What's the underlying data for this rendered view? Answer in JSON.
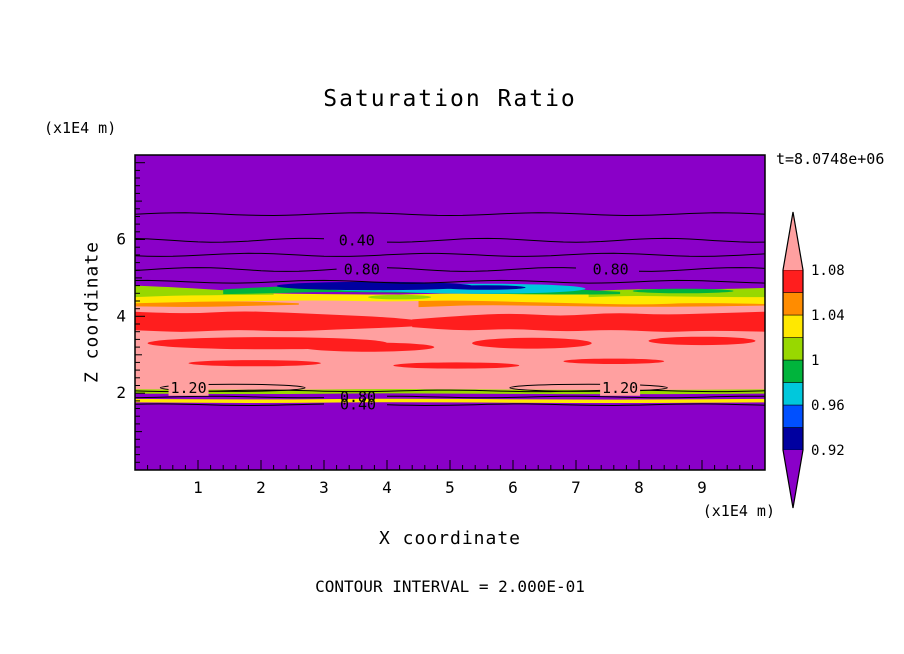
{
  "page": {
    "background_color": "#ffffff",
    "text_color": "#000000"
  },
  "chart_data": {
    "type": "heatmap",
    "subtype": "filled-contour-plot",
    "title": "Saturation Ratio",
    "time_label": "t=8.0748e+06",
    "xlabel": "X coordinate",
    "ylabel": "Z coordinate",
    "x_units_label": "(x1E4 m)",
    "y_units_label": "(x1E4 m)",
    "contour_interval_label": "CONTOUR INTERVAL = 2.000E-01",
    "contour_interval": 0.2,
    "xlim": [
      0,
      10
    ],
    "ylim": [
      0,
      8.2
    ],
    "x_ticks": [
      "1",
      "2",
      "3",
      "4",
      "5",
      "6",
      "7",
      "8",
      "9"
    ],
    "y_ticks": [
      "2",
      "4",
      "6"
    ],
    "minor_tick_step": 0.2,
    "colorbar": {
      "tick_values": [
        0.92,
        0.96,
        1,
        1.04,
        1.08
      ],
      "tick_labels": [
        "0.92",
        "0.96",
        "1",
        "1.04",
        "1.08"
      ],
      "segment_colors_bottom_to_top": [
        "#0000A0",
        "#0050FF",
        "#00C8DC",
        "#00B43C",
        "#98D800",
        "#FFE800",
        "#FF8C00",
        "#FF1E1E"
      ],
      "underflow_color": "#8A00C8",
      "overflow_color": "#FFA0A0"
    },
    "field_shapes": [
      {
        "type": "band",
        "color": "#FFA0A0",
        "x": [
          0,
          1,
          2,
          3,
          4,
          5,
          6,
          7,
          8,
          9,
          10
        ],
        "top": [
          4.5,
          4.52,
          4.5,
          4.54,
          4.5,
          4.48,
          4.46,
          4.48,
          4.5,
          4.52,
          4.5
        ],
        "bot": [
          2.04,
          2.06,
          2.03,
          2.06,
          2.04,
          2.07,
          2.05,
          2.03,
          2.06,
          2.04,
          2.05
        ]
      },
      {
        "type": "band",
        "color": "#FF8C00",
        "x": [
          0,
          1,
          2,
          2.6
        ],
        "top": [
          4.44,
          4.4,
          4.38,
          4.34
        ],
        "bot": [
          4.26,
          4.24,
          4.28,
          4.3
        ]
      },
      {
        "type": "band",
        "color": "#FF8C00",
        "x": [
          4.5,
          5.5,
          7,
          8.5,
          10
        ],
        "top": [
          4.4,
          4.44,
          4.4,
          4.38,
          4.42
        ],
        "bot": [
          4.24,
          4.3,
          4.26,
          4.24,
          4.28
        ]
      },
      {
        "type": "band",
        "color": "#FF1E1E",
        "x": [
          0,
          0.8,
          1.6,
          2.4,
          3.2,
          4,
          4.6
        ],
        "top": [
          4.12,
          4.06,
          4.14,
          4.1,
          4.04,
          3.98,
          3.88
        ],
        "bot": [
          3.64,
          3.58,
          3.66,
          3.6,
          3.66,
          3.7,
          3.76
        ]
      },
      {
        "type": "band",
        "color": "#FF1E1E",
        "x": [
          4.4,
          5.2,
          6,
          6.8,
          7.6,
          8.4,
          9.2,
          10
        ],
        "top": [
          3.92,
          4.02,
          4.08,
          4.0,
          4.1,
          4.04,
          4.08,
          4.12
        ],
        "bot": [
          3.72,
          3.62,
          3.68,
          3.6,
          3.66,
          3.58,
          3.64,
          3.6
        ]
      },
      {
        "type": "lens",
        "color": "#FF1E1E",
        "cx": 2.1,
        "cz": 3.3,
        "rx": 1.9,
        "rz": 0.16
      },
      {
        "type": "lens",
        "color": "#FF1E1E",
        "cx": 3.7,
        "cz": 3.2,
        "rx": 1.05,
        "rz": 0.12
      },
      {
        "type": "lens",
        "color": "#FF1E1E",
        "cx": 6.3,
        "cz": 3.3,
        "rx": 0.95,
        "rz": 0.14
      },
      {
        "type": "lens",
        "color": "#FF1E1E",
        "cx": 9.0,
        "cz": 3.36,
        "rx": 0.85,
        "rz": 0.11
      },
      {
        "type": "lens",
        "color": "#FF1E1E",
        "cx": 1.9,
        "cz": 2.78,
        "rx": 1.05,
        "rz": 0.08
      },
      {
        "type": "lens",
        "color": "#FF1E1E",
        "cx": 5.1,
        "cz": 2.72,
        "rx": 1.0,
        "rz": 0.08
      },
      {
        "type": "lens",
        "color": "#FF1E1E",
        "cx": 7.6,
        "cz": 2.83,
        "rx": 0.8,
        "rz": 0.07
      },
      {
        "type": "band",
        "color": "#FFE800",
        "x": [
          0,
          1,
          2,
          3,
          4,
          5,
          6,
          7,
          8,
          9,
          10
        ],
        "top": [
          4.72,
          4.66,
          4.6,
          4.58,
          4.56,
          4.6,
          4.58,
          4.62,
          4.68,
          4.66,
          4.72
        ],
        "bot": [
          4.34,
          4.38,
          4.4,
          4.42,
          4.38,
          4.42,
          4.38,
          4.34,
          4.3,
          4.36,
          4.32
        ]
      },
      {
        "type": "band",
        "color": "#98D800",
        "x": [
          0,
          0.6,
          1.2,
          1.8,
          2.2
        ],
        "top": [
          4.8,
          4.76,
          4.7,
          4.64,
          4.6
        ],
        "bot": [
          4.5,
          4.54,
          4.55,
          4.56,
          4.56
        ]
      },
      {
        "type": "band",
        "color": "#98D800",
        "x": [
          7.2,
          8,
          9,
          10
        ],
        "top": [
          4.66,
          4.72,
          4.7,
          4.74
        ],
        "bot": [
          4.5,
          4.54,
          4.5,
          4.5
        ]
      },
      {
        "type": "lens",
        "color": "#98D800",
        "cx": 4.2,
        "cz": 4.5,
        "rx": 0.5,
        "rz": 0.06
      },
      {
        "type": "band",
        "color": "#00B43C",
        "x": [
          1.4,
          2.2,
          3,
          4,
          5,
          6,
          7,
          7.7
        ],
        "top": [
          4.7,
          4.78,
          4.8,
          4.82,
          4.8,
          4.76,
          4.7,
          4.64
        ],
        "bot": [
          4.58,
          4.6,
          4.64,
          4.62,
          4.6,
          4.58,
          4.56,
          4.58
        ]
      },
      {
        "type": "lens",
        "color": "#00B43C",
        "cx": 8.7,
        "cz": 4.66,
        "rx": 0.8,
        "rz": 0.06
      },
      {
        "type": "lens",
        "color": "#00C8DC",
        "cx": 5.5,
        "cz": 4.72,
        "rx": 1.65,
        "rz": 0.13
      },
      {
        "type": "lens",
        "color": "#00C8DC",
        "cx": 4.1,
        "cz": 4.74,
        "rx": 1.1,
        "rz": 0.1
      },
      {
        "type": "lens",
        "color": "#0000A0",
        "cx": 3.8,
        "cz": 4.79,
        "rx": 1.55,
        "rz": 0.11
      },
      {
        "type": "lens",
        "color": "#0000A0",
        "cx": 5.55,
        "cz": 4.75,
        "rx": 0.65,
        "rz": 0.06
      },
      {
        "type": "band",
        "color": "#98D800",
        "x": [
          0,
          2,
          4,
          6,
          8,
          10
        ],
        "top": [
          2.1,
          2.08,
          2.11,
          2.09,
          2.08,
          2.1
        ],
        "bot": [
          1.99,
          1.97,
          2.0,
          1.98,
          1.97,
          1.99
        ]
      },
      {
        "type": "band",
        "color": "#FFE800",
        "x": [
          0,
          2,
          4,
          6,
          8,
          10
        ],
        "top": [
          1.85,
          1.83,
          1.86,
          1.84,
          1.83,
          1.85
        ],
        "bot": [
          1.76,
          1.74,
          1.77,
          1.75,
          1.74,
          1.76
        ]
      }
    ],
    "contour_lines": [
      {
        "z": 6.66,
        "amp": 0.035,
        "label": "",
        "label_x": []
      },
      {
        "z": 5.98,
        "amp": 0.05,
        "label": "0.40",
        "label_x": [
          3.52
        ]
      },
      {
        "z": 5.6,
        "amp": 0.04,
        "label": "",
        "label_x": []
      },
      {
        "z": 5.22,
        "amp": 0.05,
        "label": "0.80",
        "label_x": [
          3.6,
          7.55
        ]
      },
      {
        "z": 4.9,
        "amp": 0.035,
        "label": "",
        "label_x": []
      },
      {
        "z": 2.06,
        "amp": 0.02,
        "label": "",
        "label_x": []
      },
      {
        "z": 1.9,
        "amp": 0.02,
        "label": "0.80",
        "label_x": [
          3.54
        ]
      },
      {
        "z": 1.7,
        "amp": 0.02,
        "label": "0.40",
        "label_x": [
          3.54
        ]
      }
    ],
    "contour_loops": [
      {
        "cx": 1.55,
        "cz": 2.14,
        "rx": 1.15,
        "rz": 0.095,
        "label": "1.20",
        "label_x": 0.85,
        "label_bg": "#FFA0A0"
      },
      {
        "cx": 7.2,
        "cz": 2.14,
        "rx": 1.25,
        "rz": 0.095,
        "label": "1.20",
        "label_x": 7.7,
        "label_bg": "#FFA0A0"
      }
    ]
  }
}
